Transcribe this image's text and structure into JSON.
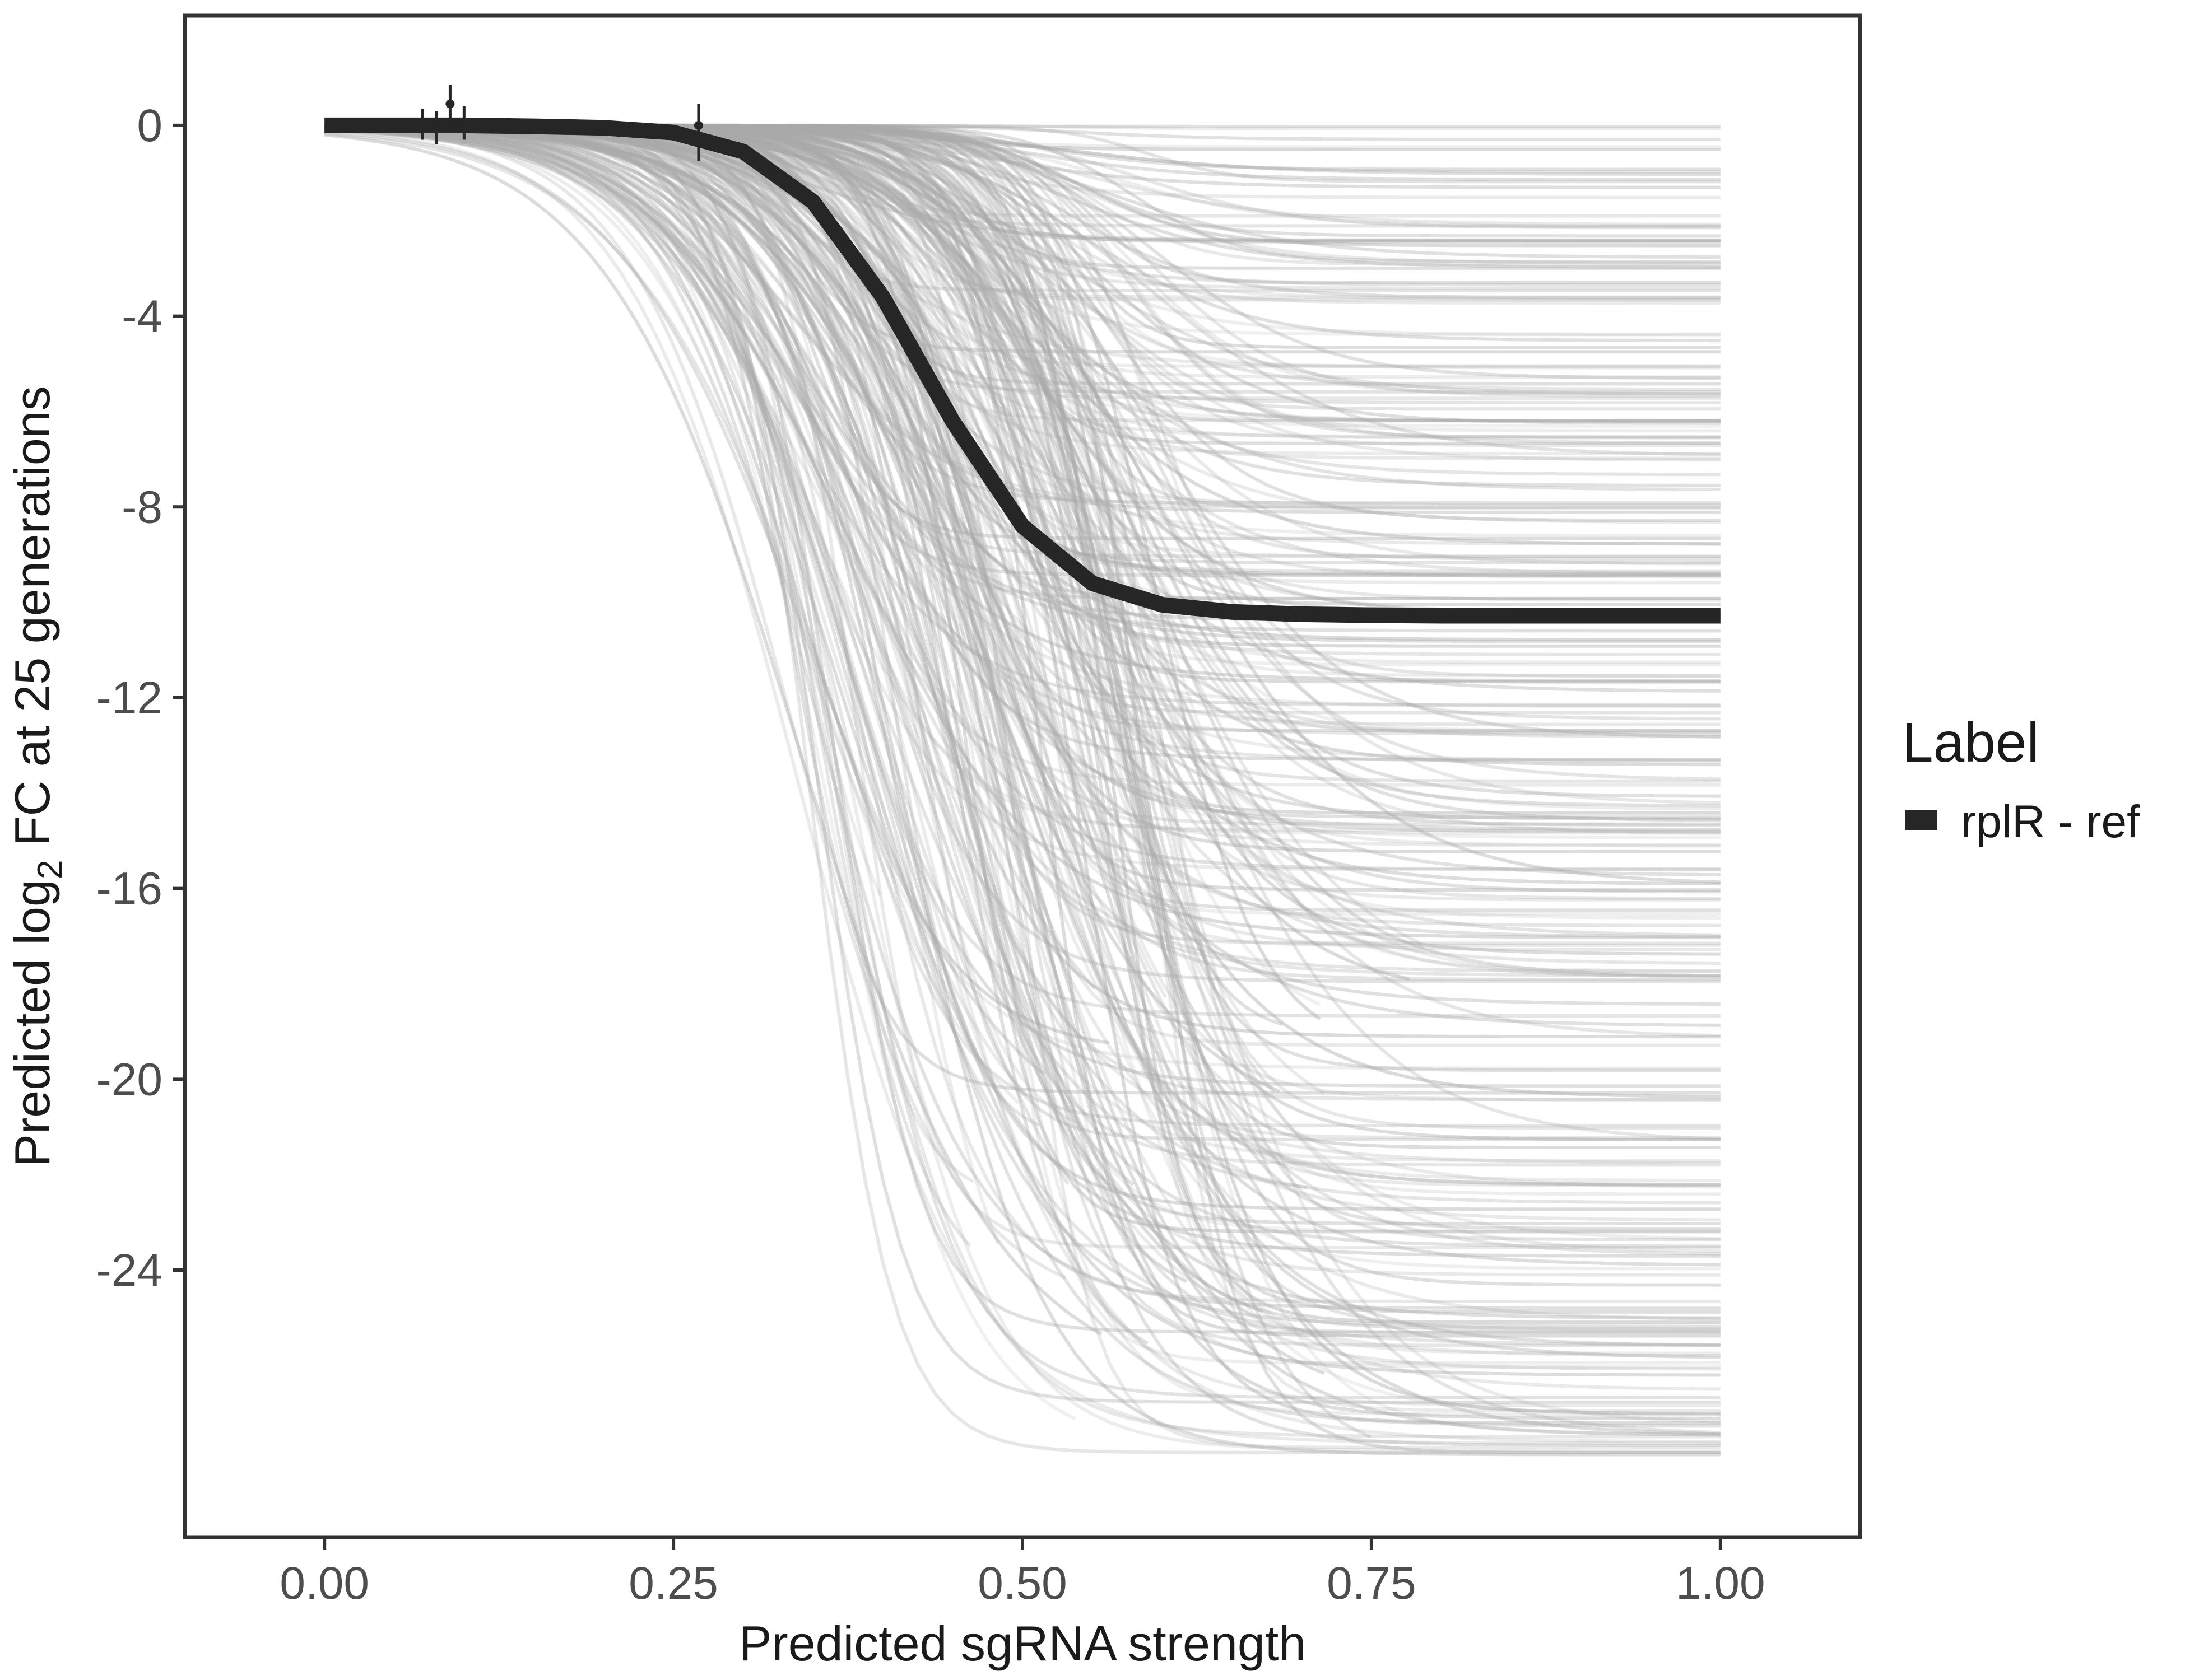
{
  "chart_data": {
    "type": "line",
    "title": "",
    "xlabel": "Predicted sgRNA strength",
    "ylabel_prefix": "Predicted  log",
    "ylabel_subscript": "2",
    "ylabel_suffix": " FC at 25 generations",
    "xlim": [
      -0.1,
      1.1
    ],
    "ylim": [
      -29.6,
      2.3
    ],
    "x_ticks": [
      0.0,
      0.25,
      0.5,
      0.75,
      1.0
    ],
    "x_tick_labels": [
      "0.00",
      "0.25",
      "0.50",
      "0.75",
      "1.00"
    ],
    "y_ticks": [
      0,
      -4,
      -8,
      -12,
      -16,
      -20,
      -24
    ],
    "y_tick_labels": [
      "0",
      "-4",
      "-8",
      "-12",
      "-16",
      "-20",
      "-24"
    ],
    "grid": false,
    "background_curves": {
      "description_count": 320,
      "color": "#aaaaaa",
      "y_end_range": [
        -28.0,
        0.0
      ],
      "midpoint_range": [
        0.33,
        0.6
      ]
    },
    "series": [
      {
        "name": "rplR - ref",
        "color": "#262626",
        "x": [
          0.0,
          0.05,
          0.1,
          0.15,
          0.2,
          0.25,
          0.3,
          0.35,
          0.4,
          0.45,
          0.5,
          0.55,
          0.6,
          0.65,
          0.7,
          0.75,
          0.8,
          0.85,
          0.9,
          0.95,
          1.0
        ],
        "y": [
          0.0,
          0.0,
          0.0,
          -0.02,
          -0.05,
          -0.15,
          -0.55,
          -1.6,
          -3.6,
          -6.2,
          -8.4,
          -9.6,
          -10.05,
          -10.2,
          -10.25,
          -10.27,
          -10.28,
          -10.28,
          -10.28,
          -10.28,
          -10.28
        ]
      }
    ],
    "points": [
      {
        "x": 0.07,
        "y": 0.05,
        "ymin": -0.3,
        "ymax": 0.35
      },
      {
        "x": 0.08,
        "y": -0.05,
        "ymin": -0.4,
        "ymax": 0.3
      },
      {
        "x": 0.09,
        "y": 0.45,
        "ymin": 0.0,
        "ymax": 0.85
      },
      {
        "x": 0.1,
        "y": 0.05,
        "ymin": -0.3,
        "ymax": 0.4
      },
      {
        "x": 0.268,
        "y": 0.0,
        "ymin": -0.75,
        "ymax": 0.45
      }
    ],
    "legend": {
      "title": "Label",
      "placement": "right",
      "entries": [
        {
          "label": "rplR - ref",
          "color": "#262626"
        }
      ]
    }
  }
}
